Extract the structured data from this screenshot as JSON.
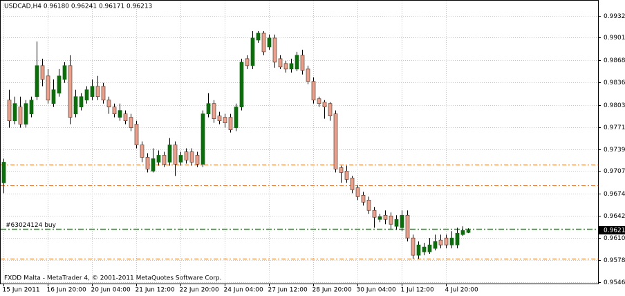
{
  "chart_data": {
    "type": "candlestick",
    "title": "USDCAD,H4  0.96180 0.96241 0.96171 0.96213",
    "footer": "FXDD Malta - MetaTrader 4, © 2001-2011 MetaQuotes Software Corp.",
    "categories": [
      "15 Jun 2011",
      null,
      null,
      null,
      null,
      null,
      null,
      null,
      "16 Jun 20:00",
      null,
      null,
      null,
      null,
      null,
      null,
      null,
      "20 Jun 04:00",
      null,
      null,
      null,
      null,
      null,
      null,
      null,
      "21 Jun 12:00",
      null,
      null,
      null,
      null,
      null,
      null,
      null,
      "22 Jun 20:00",
      null,
      null,
      null,
      null,
      null,
      null,
      null,
      "24 Jun 04:00",
      null,
      null,
      null,
      null,
      null,
      null,
      null,
      "27 Jun 12:00",
      null,
      null,
      null,
      null,
      null,
      null,
      null,
      "28 Jun 20:00",
      null,
      null,
      null,
      null,
      null,
      null,
      null,
      "30 Jun 04:00",
      null,
      null,
      null,
      null,
      null,
      null,
      null,
      "1 Jul 12:00",
      null,
      null,
      null,
      null,
      null,
      null,
      null,
      "4 Jul 20:00",
      null,
      null,
      null,
      null
    ],
    "open": [
      0.969,
      0.981,
      0.978,
      0.98,
      0.9775,
      0.979,
      0.9815,
      0.986,
      0.9845,
      0.9805,
      0.982,
      0.984,
      0.986,
      0.979,
      0.98,
      0.981,
      0.9815,
      0.983,
      0.983,
      0.981,
      0.98,
      0.9785,
      0.979,
      0.9785,
      0.9775,
      0.9745,
      0.9727,
      0.9707,
      0.972,
      0.973,
      0.972,
      0.9745,
      0.972,
      0.9735,
      0.9735,
      0.973,
      0.9717,
      0.979,
      0.9805,
      0.9787,
      0.9785,
      0.9785,
      0.977,
      0.98,
      0.987,
      0.986,
      0.9897,
      0.9907,
      0.9887,
      0.99,
      0.987,
      0.9863,
      0.9855,
      0.9855,
      0.9875,
      0.9855,
      0.9837,
      0.9812,
      0.9807,
      0.9805,
      0.979,
      0.9712,
      0.9707,
      0.9697,
      0.9683,
      0.9672,
      0.9665,
      0.965,
      0.9637,
      0.9643,
      0.9642,
      0.9627,
      0.9625,
      0.9643,
      0.961,
      0.9585,
      0.959,
      0.959,
      0.9595,
      0.9607,
      0.961,
      0.96,
      0.96,
      0.9615,
      0.9618
    ],
    "high": [
      0.9725,
      0.9825,
      0.9815,
      0.9815,
      0.981,
      0.9815,
      0.9895,
      0.987,
      0.9855,
      0.984,
      0.9855,
      0.9865,
      0.9875,
      0.9825,
      0.982,
      0.983,
      0.984,
      0.9845,
      0.9835,
      0.9815,
      0.9805,
      0.9805,
      0.9795,
      0.979,
      0.978,
      0.975,
      0.9733,
      0.974,
      0.9737,
      0.9735,
      0.9755,
      0.975,
      0.9735,
      0.974,
      0.974,
      0.9735,
      0.9795,
      0.982,
      0.981,
      0.9793,
      0.979,
      0.979,
      0.9805,
      0.987,
      0.9875,
      0.991,
      0.991,
      0.991,
      0.9905,
      0.9905,
      0.9875,
      0.9867,
      0.987,
      0.988,
      0.9883,
      0.986,
      0.9843,
      0.9815,
      0.981,
      0.9807,
      0.9795,
      0.9715,
      0.9715,
      0.97,
      0.9687,
      0.9677,
      0.967,
      0.9655,
      0.9645,
      0.965,
      0.9647,
      0.9643,
      0.965,
      0.965,
      0.9615,
      0.9605,
      0.9603,
      0.961,
      0.9615,
      0.9615,
      0.9615,
      0.962,
      0.9625,
      0.9627,
      0.96241
    ],
    "low": [
      0.9675,
      0.977,
      0.9775,
      0.977,
      0.977,
      0.9785,
      0.981,
      0.983,
      0.9805,
      0.98,
      0.9815,
      0.9835,
      0.9775,
      0.9785,
      0.9795,
      0.9805,
      0.981,
      0.981,
      0.9805,
      0.979,
      0.9785,
      0.978,
      0.9775,
      0.9765,
      0.974,
      0.972,
      0.9705,
      0.9705,
      0.9715,
      0.9713,
      0.9715,
      0.97,
      0.9715,
      0.9718,
      0.9715,
      0.9713,
      0.9713,
      0.9785,
      0.9777,
      0.9775,
      0.977,
      0.9763,
      0.9765,
      0.9795,
      0.9855,
      0.9855,
      0.9893,
      0.9875,
      0.9883,
      0.9857,
      0.9855,
      0.985,
      0.985,
      0.9852,
      0.9847,
      0.9833,
      0.9805,
      0.98,
      0.9783,
      0.978,
      0.9705,
      0.969,
      0.969,
      0.9675,
      0.9665,
      0.9657,
      0.9645,
      0.9625,
      0.9633,
      0.963,
      0.9623,
      0.9622,
      0.962,
      0.9605,
      0.958,
      0.958,
      0.9585,
      0.9587,
      0.9592,
      0.9595,
      0.9595,
      0.9595,
      0.9595,
      0.9613,
      0.96171
    ],
    "close": [
      0.972,
      0.978,
      0.9805,
      0.9775,
      0.9805,
      0.981,
      0.986,
      0.984,
      0.981,
      0.9825,
      0.9845,
      0.986,
      0.9785,
      0.9815,
      0.9815,
      0.9825,
      0.983,
      0.9815,
      0.981,
      0.98,
      0.979,
      0.9795,
      0.978,
      0.977,
      0.9745,
      0.9727,
      0.971,
      0.9725,
      0.973,
      0.9717,
      0.9745,
      0.9717,
      0.973,
      0.9723,
      0.972,
      0.9717,
      0.979,
      0.9805,
      0.9783,
      0.978,
      0.9777,
      0.9767,
      0.98,
      0.9865,
      0.986,
      0.99,
      0.9907,
      0.988,
      0.99,
      0.9865,
      0.9858,
      0.9855,
      0.9863,
      0.9875,
      0.9853,
      0.9837,
      0.981,
      0.9805,
      0.98,
      0.9787,
      0.971,
      0.9705,
      0.9695,
      0.968,
      0.967,
      0.9662,
      0.965,
      0.964,
      0.9641,
      0.9637,
      0.963,
      0.9637,
      0.9643,
      0.961,
      0.9585,
      0.96,
      0.9597,
      0.96,
      0.9605,
      0.96,
      0.96,
      0.961,
      0.9617,
      0.9621,
      0.96213
    ],
    "up_color": "#0b6e0b",
    "down_color": "#e9a08c",
    "ylim": [
      0.9544,
      0.99551
    ],
    "yticks": [
      {
        "value": 0.9932,
        "label": "0.99320"
      },
      {
        "value": 0.9901,
        "label": "0.99010"
      },
      {
        "value": 0.9868,
        "label": "0.98680"
      },
      {
        "value": 0.9836,
        "label": "0.98360"
      },
      {
        "value": 0.9803,
        "label": "0.98030"
      },
      {
        "value": 0.9771,
        "label": "0.97710"
      },
      {
        "value": 0.9739,
        "label": "0.97390"
      },
      {
        "value": 0.9707,
        "label": "0.97070"
      },
      {
        "value": 0.9674,
        "label": "0.96740"
      },
      {
        "value": 0.9642,
        "label": "0.96420"
      },
      {
        "value": 0.961,
        "label": "0.96100"
      },
      {
        "value": 0.9578,
        "label": "0.95780"
      },
      {
        "value": 0.9546,
        "label": "0.95460"
      }
    ],
    "grid": true,
    "levels": [
      {
        "value": 0.9716,
        "color": "#e0702a"
      },
      {
        "value": 0.9686,
        "color": "#e0702a"
      },
      {
        "value": 0.958,
        "color": "#e0702a"
      }
    ],
    "orders": [
      {
        "label": "#63024124 buy",
        "value": 0.9623,
        "color": "#1a9a1a"
      }
    ],
    "bid": {
      "value": 0.96213,
      "label": "0.96213"
    }
  }
}
